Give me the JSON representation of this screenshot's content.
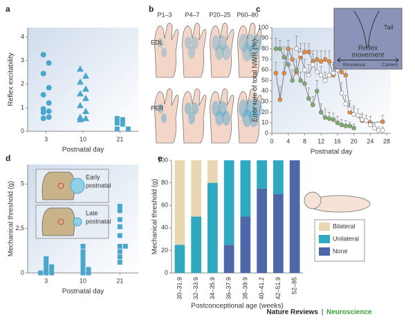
{
  "chart_data": [
    {
      "type": "strip",
      "panel": "a",
      "ylabel": "Reflex excitability",
      "xlabel": "Postnatal day",
      "categories": [
        "3",
        "10",
        "21"
      ],
      "markers": [
        "circle",
        "triangle",
        "square"
      ],
      "color": "#4ba6cc",
      "values": [
        [
          3.25,
          2.9,
          2.45,
          1.85,
          1.55,
          1.2,
          0.95,
          0.85,
          0.8,
          0.6,
          0.55
        ],
        [
          2.65,
          2.35,
          2.1,
          1.8,
          1.6,
          1.4,
          1.1,
          0.85,
          0.6,
          0.55,
          0.5
        ],
        [
          0.55,
          0.5,
          0.35,
          0.3,
          0.1,
          0.1
        ]
      ],
      "ylim": [
        0,
        4.4
      ],
      "yticks": [
        0,
        1,
        2,
        3,
        4
      ]
    },
    {
      "type": "line",
      "panel": "c",
      "ylabel": "Error rate of total NWR (%)",
      "xlabel": "Postnatal day",
      "inset": [
        "Tail",
        "Reflex",
        "movement",
        "Erroneous",
        "Correct"
      ],
      "series": [
        {
          "color": "#e8893a",
          "x": [
            1,
            2,
            3,
            4,
            5,
            6,
            7,
            8,
            9,
            10,
            11,
            12,
            13,
            14,
            15,
            16,
            17,
            18,
            19,
            20,
            22,
            24,
            27
          ],
          "values": [
            57,
            32,
            57,
            80,
            70,
            58,
            72,
            77,
            77,
            68,
            70,
            68,
            70,
            68,
            55,
            67,
            58,
            55,
            20,
            18,
            12,
            10,
            11
          ],
          "errors": [
            10,
            12,
            10,
            8,
            10,
            10,
            8,
            8,
            8,
            10,
            8,
            10,
            8,
            10,
            10,
            8,
            10,
            10,
            8,
            8,
            6,
            6,
            6
          ]
        },
        {
          "color": "#7cac6a",
          "x": [
            1,
            2,
            3,
            4,
            5,
            6,
            7,
            8,
            9,
            10,
            11,
            12,
            13,
            14,
            15,
            16,
            17,
            18,
            19,
            20
          ],
          "values": [
            80,
            80,
            72,
            65,
            50,
            60,
            50,
            47,
            33,
            27,
            40,
            20,
            15,
            14,
            13,
            10,
            8,
            7,
            7,
            5
          ],
          "errors": [
            10,
            8,
            10,
            10,
            10,
            10,
            8,
            10,
            10,
            8,
            10,
            8,
            8,
            6,
            6,
            6,
            5,
            5,
            4,
            4
          ]
        },
        {
          "color": "#ffffff",
          "x": [
            6,
            7,
            8,
            9,
            10,
            11,
            12,
            13,
            14,
            15,
            16,
            17,
            18,
            19,
            20,
            21,
            22,
            23,
            24,
            25,
            26,
            27
          ],
          "values": [
            80,
            75,
            60,
            55,
            65,
            58,
            55,
            50,
            55,
            57,
            60,
            38,
            28,
            23,
            18,
            17,
            13,
            12,
            8,
            5,
            3,
            3
          ],
          "errors": [
            12,
            10,
            10,
            10,
            10,
            10,
            8,
            8,
            10,
            10,
            10,
            10,
            8,
            8,
            6,
            6,
            6,
            5,
            4,
            4,
            3,
            3
          ]
        }
      ],
      "xlim": [
        0,
        29
      ],
      "xticks": [
        0,
        4,
        8,
        12,
        16,
        20,
        24,
        28
      ],
      "ylim": [
        0,
        100
      ],
      "yticks": [
        0,
        10,
        20,
        30,
        40,
        50,
        60,
        70,
        80,
        90,
        100
      ]
    },
    {
      "type": "strip",
      "panel": "d",
      "ylabel": "Mechanical threshold (g)",
      "xlabel": "Postnatal day",
      "inset": [
        "Early",
        "postnatal",
        "Late",
        "postnatal"
      ],
      "categories": [
        "3",
        "10",
        "21"
      ],
      "markers": [
        "square",
        "square",
        "square"
      ],
      "color": "#4ba6cc",
      "values": [
        [
          0,
          0,
          0,
          0.15,
          0.15,
          0.35,
          0.35,
          0.5,
          0.65,
          0.8
        ],
        [
          0,
          0,
          0.2,
          0.2,
          0.4,
          0.6,
          0.8,
          1.0,
          1.2,
          1.5
        ],
        [
          0.6,
          0.9,
          1.2,
          1.5,
          1.5,
          2.1,
          2.6,
          3.0,
          3.5,
          3.75
        ]
      ],
      "ylim": [
        0,
        6.1
      ],
      "yticks": [
        0,
        {
          "value": 2.5,
          "label": "2,5"
        },
        5
      ]
    },
    {
      "type": "stackedbar",
      "panel": "e",
      "ylabel": "Mechanical threshold (g)",
      "xlabel": "Postconceptional age (weeks)",
      "categories": [
        "30–31.9",
        "32–33.9",
        "34–35.9",
        "36–37.9",
        "38–39.9",
        "40–41.2",
        "42–51.9",
        "52–95"
      ],
      "series": [
        {
          "name": "Bilateral",
          "color": "#e9d7b4",
          "values": [
            75,
            50,
            20,
            0,
            0,
            0,
            0,
            0
          ]
        },
        {
          "name": "Unilateral",
          "color": "#2fa9c0",
          "values": [
            25,
            50,
            80,
            75,
            50,
            25,
            30,
            0
          ]
        },
        {
          "name": "None",
          "color": "#4d68a8",
          "values": [
            0,
            0,
            0,
            25,
            50,
            75,
            70,
            100
          ]
        }
      ],
      "ylim": [
        0,
        100
      ],
      "yticks": [
        0,
        20,
        40,
        60,
        80,
        100
      ]
    }
  ],
  "illustration": {
    "panel": "b",
    "columns": [
      "P1–3",
      "P4–7",
      "P20–25",
      "P60–80"
    ],
    "rows": [
      "EDL",
      "PER"
    ]
  },
  "footer": [
    "Nature Reviews",
    "|",
    "Neuroscience"
  ]
}
